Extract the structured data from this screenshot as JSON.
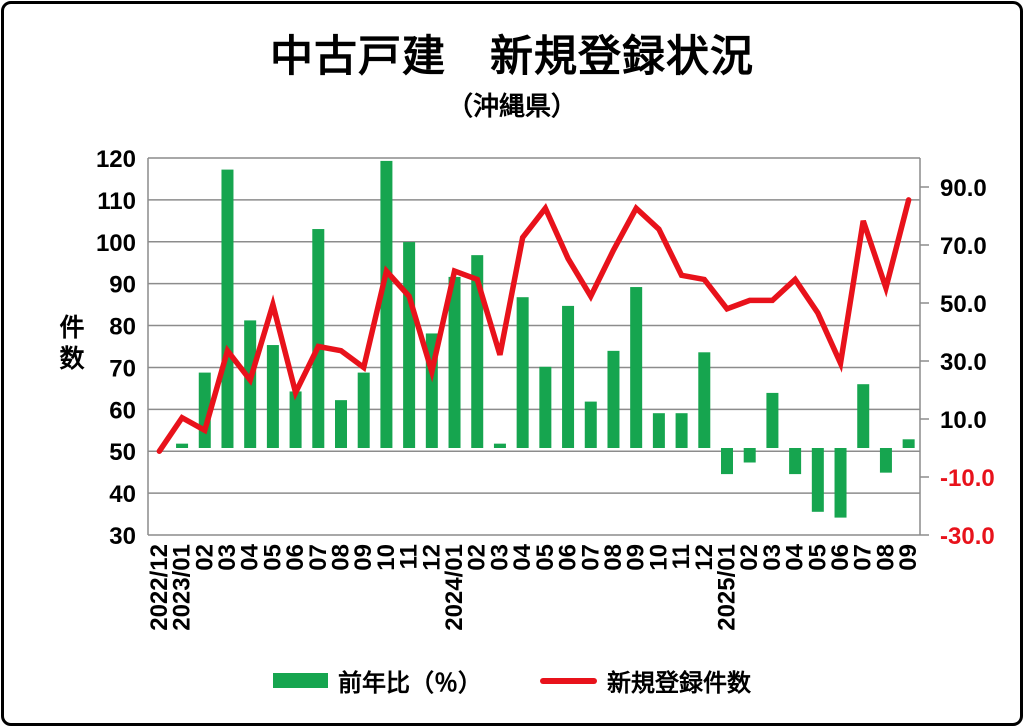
{
  "title": "中古戸建　新規登録状況",
  "subtitle": "（沖縄県）",
  "left_axis": {
    "title": "件数",
    "ticks": [
      120,
      110,
      100,
      90,
      80,
      70,
      60,
      50,
      40,
      30
    ]
  },
  "right_axis": {
    "ticks": [
      90,
      70,
      50,
      30,
      10,
      -10,
      -30
    ],
    "decimals": 1,
    "negative_color": "#e8121b",
    "positive_color": "#000000"
  },
  "legend": {
    "items": [
      {
        "label": "前年比（％）",
        "marker": "bar",
        "color": "#16a54f"
      },
      {
        "label": "新規登録件数",
        "marker": "line",
        "color": "#e8121b"
      }
    ]
  },
  "chart_data": {
    "type": "bar",
    "subtype": "combo-bar-line",
    "categories": [
      "2022/12",
      "2023/01",
      "02",
      "03",
      "04",
      "05",
      "06",
      "07",
      "08",
      "09",
      "10",
      "11",
      "12",
      "2024/01",
      "02",
      "03",
      "04",
      "05",
      "06",
      "07",
      "08",
      "09",
      "10",
      "11",
      "12",
      "2025/01",
      "02",
      "03",
      "04",
      "05",
      "06",
      "07",
      "08",
      "09"
    ],
    "series": [
      {
        "name": "前年比（％）",
        "chart": "bar",
        "axis": "right",
        "color": "#16a54f",
        "values": [
          null,
          1.5,
          26,
          96,
          44,
          35.5,
          19.5,
          75.5,
          16.5,
          26,
          99,
          71,
          39.5,
          59,
          66.5,
          1.5,
          52,
          28,
          49,
          16,
          33.5,
          55.5,
          12,
          12,
          33,
          -9,
          -5,
          19,
          -9,
          -22,
          -24,
          22,
          -8.5,
          3
        ]
      },
      {
        "name": "新規登録件数",
        "chart": "line",
        "axis": "left",
        "color": "#e8121b",
        "values": [
          50,
          58,
          55,
          74,
          67,
          85,
          64,
          75,
          74,
          70,
          93,
          87,
          69,
          93,
          91,
          73,
          101,
          108,
          96,
          87,
          98,
          108,
          103,
          92,
          91,
          84,
          86,
          86,
          91,
          83,
          71,
          105,
          89,
          110
        ]
      }
    ],
    "left_axis_range": [
      30,
      120
    ],
    "right_axis_range": [
      -30,
      100
    ],
    "grid": true,
    "gridline_color": "#8c8c8c",
    "legend_position": "bottom"
  }
}
